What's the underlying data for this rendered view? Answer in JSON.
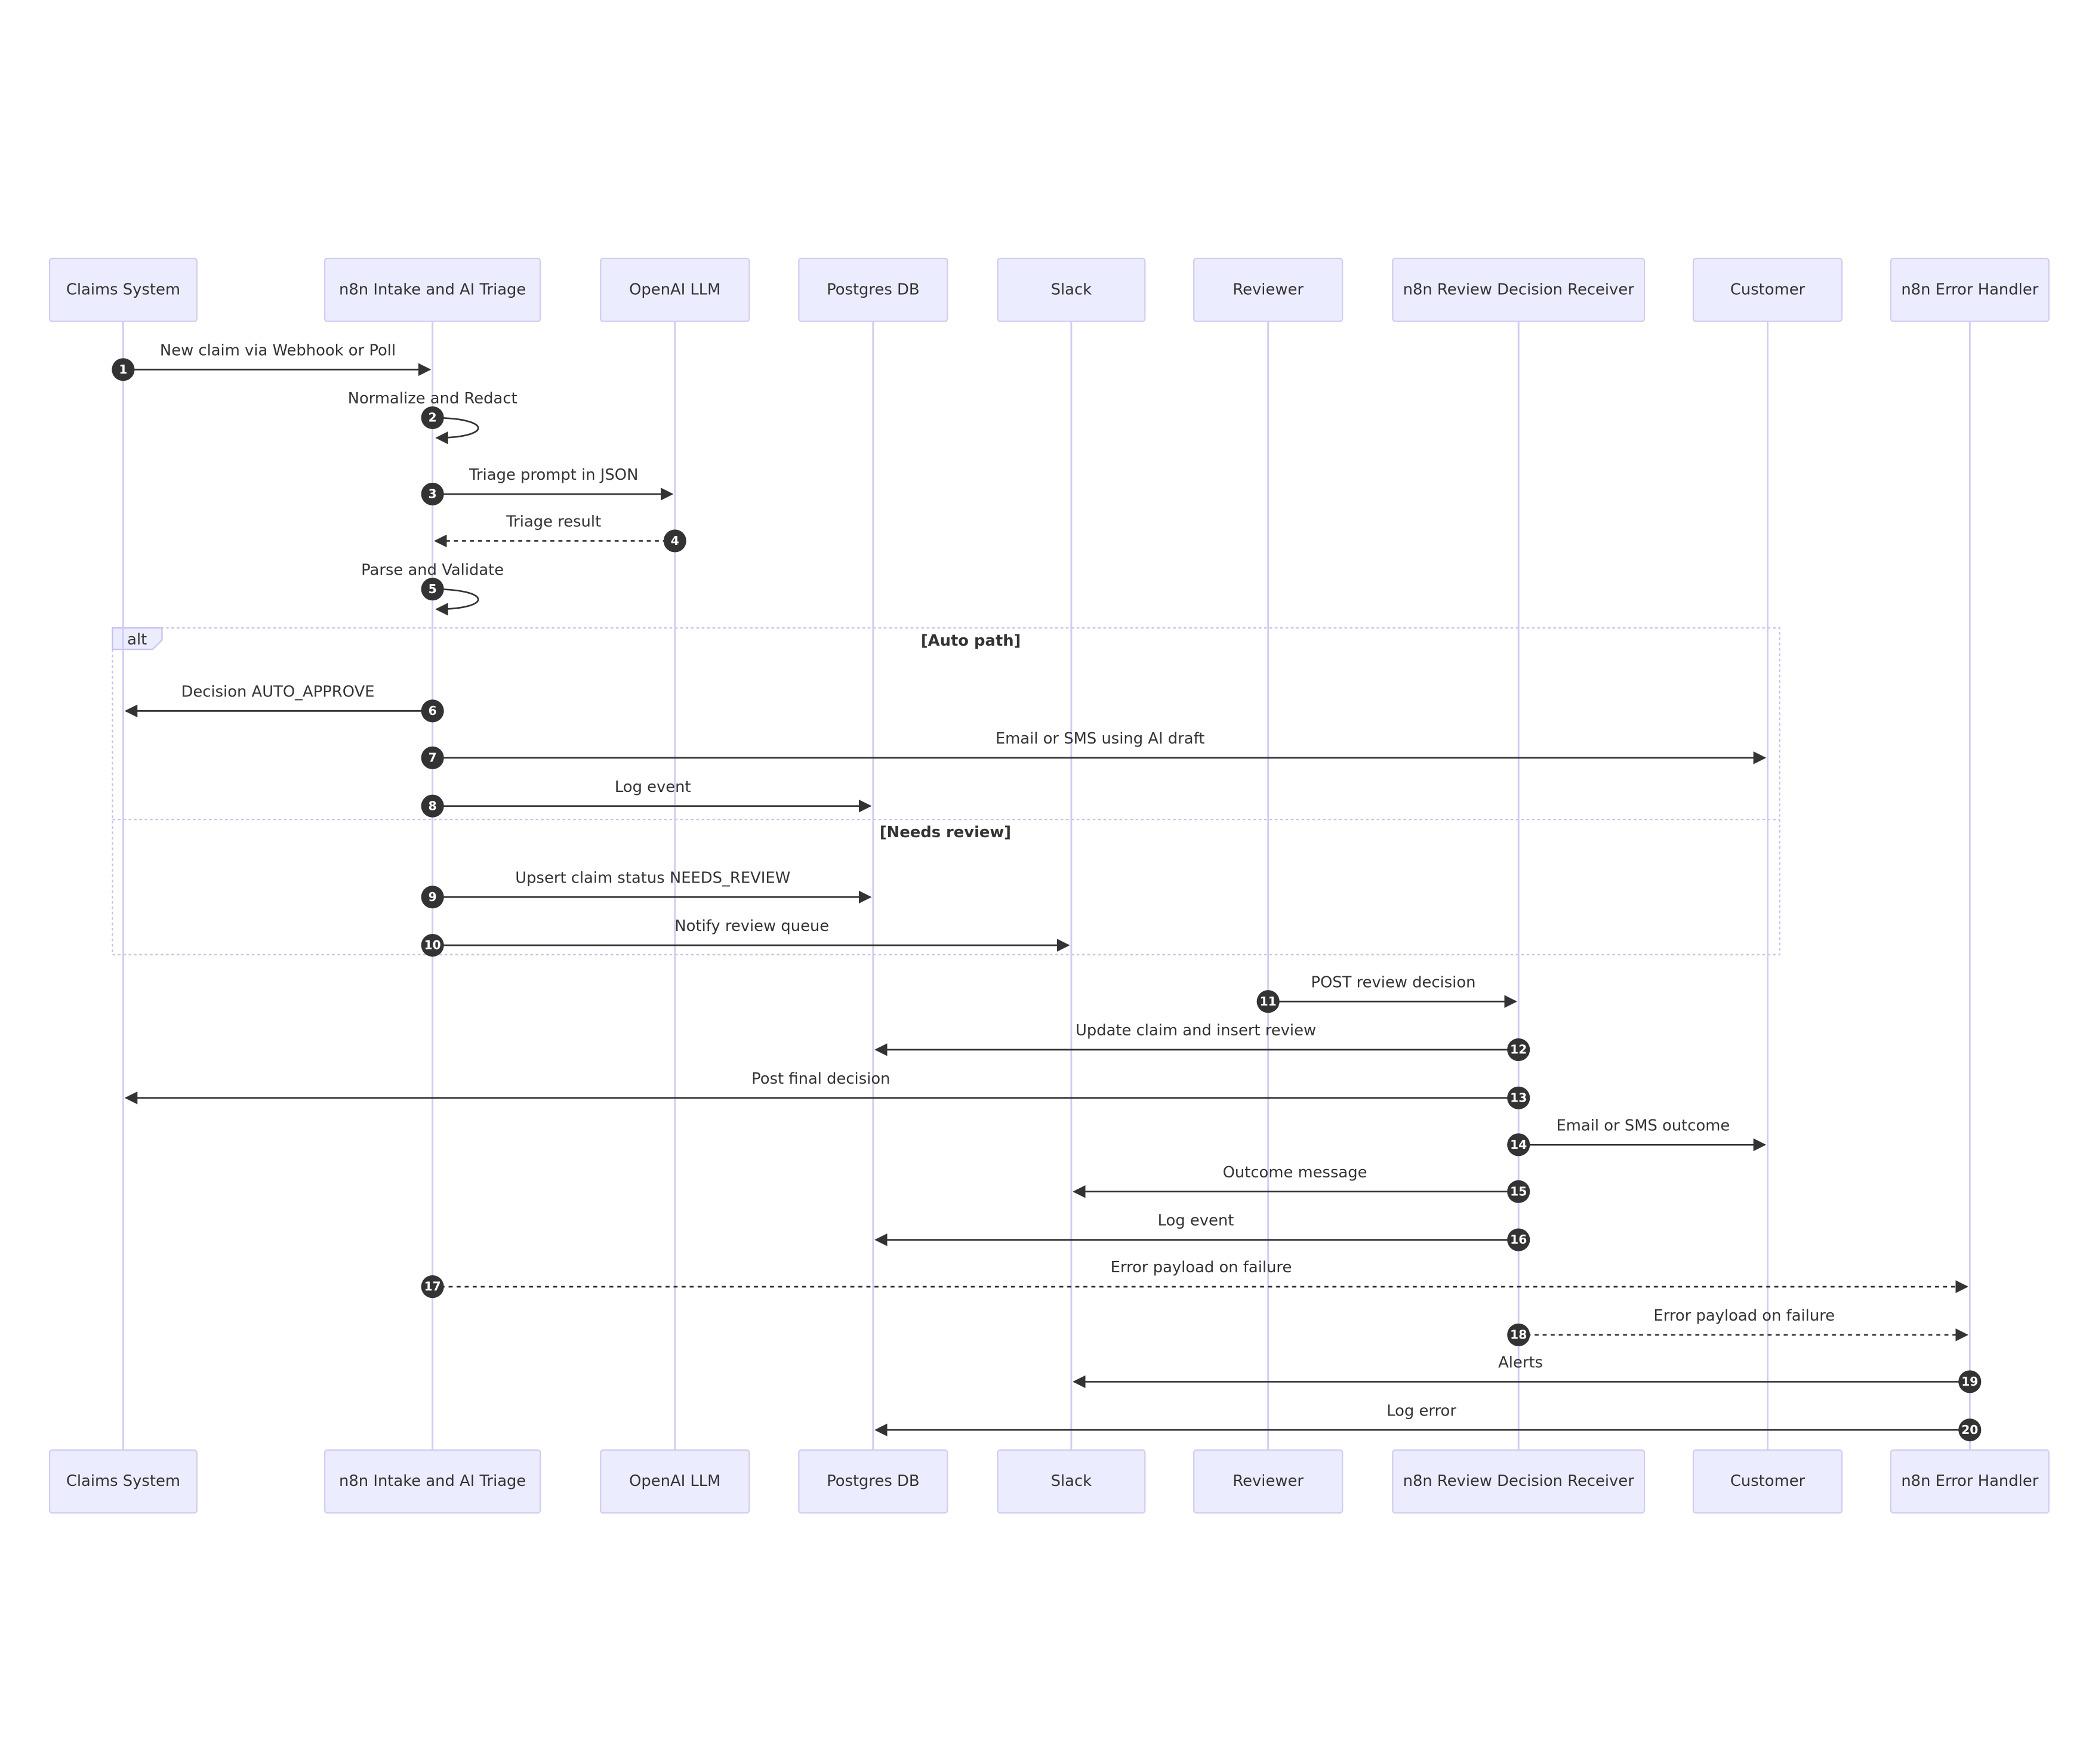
{
  "participants": [
    "Claims System",
    "n8n Intake and AI Triage",
    "OpenAI LLM",
    "Postgres DB",
    "Slack",
    "Reviewer",
    "n8n Review Decision Receiver",
    "Customer",
    "n8n Error Handler"
  ],
  "messages": [
    {
      "number": 1,
      "from": 0,
      "to": 1,
      "label": "New claim via Webhook or Poll"
    },
    {
      "number": 2,
      "from": 1,
      "to": 1,
      "label": "Normalize and Redact"
    },
    {
      "number": 3,
      "from": 1,
      "to": 2,
      "label": "Triage prompt in JSON"
    },
    {
      "number": 4,
      "from": 2,
      "to": 1,
      "label": "Triage result",
      "dashed": true
    },
    {
      "number": 5,
      "from": 1,
      "to": 1,
      "label": "Parse and Validate"
    },
    {
      "number": 6,
      "from": 1,
      "to": 0,
      "label": "Decision AUTO_APPROVE"
    },
    {
      "number": 7,
      "from": 1,
      "to": 7,
      "label": "Email or SMS using AI draft"
    },
    {
      "number": 8,
      "from": 1,
      "to": 3,
      "label": "Log event"
    },
    {
      "number": 9,
      "from": 1,
      "to": 3,
      "label": "Upsert claim status NEEDS_REVIEW"
    },
    {
      "number": 10,
      "from": 1,
      "to": 4,
      "label": "Notify review queue"
    },
    {
      "number": 11,
      "from": 5,
      "to": 6,
      "label": "POST review decision"
    },
    {
      "number": 12,
      "from": 6,
      "to": 3,
      "label": "Update claim and insert review"
    },
    {
      "number": 13,
      "from": 6,
      "to": 0,
      "label": "Post final decision"
    },
    {
      "number": 14,
      "from": 6,
      "to": 7,
      "label": "Email or SMS outcome"
    },
    {
      "number": 15,
      "from": 6,
      "to": 4,
      "label": "Outcome message"
    },
    {
      "number": 16,
      "from": 6,
      "to": 3,
      "label": "Log event"
    },
    {
      "number": 17,
      "from": 1,
      "to": 8,
      "label": "Error payload on failure",
      "dashed": true
    },
    {
      "number": 18,
      "from": 6,
      "to": 8,
      "label": "Error payload on failure",
      "dashed": true
    },
    {
      "number": 19,
      "from": 8,
      "to": 4,
      "label": "Alerts"
    },
    {
      "number": 20,
      "from": 8,
      "to": 3,
      "label": "Log error"
    }
  ],
  "alt": {
    "label": "alt",
    "sections": [
      "[Auto path]",
      "[Needs review]"
    ]
  }
}
